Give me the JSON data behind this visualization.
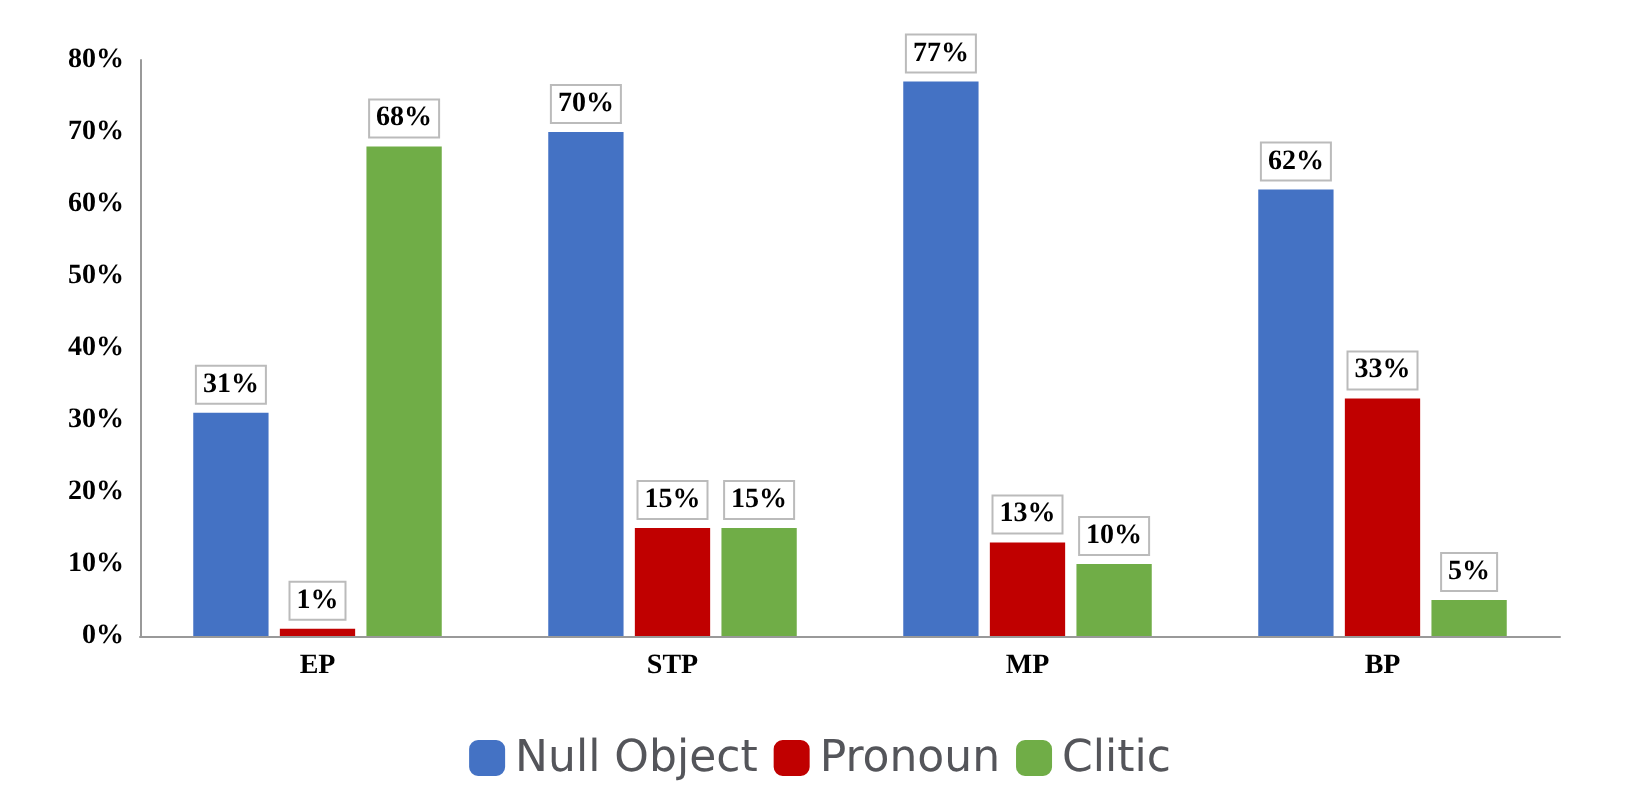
{
  "chart_data": {
    "type": "bar",
    "categories": [
      "EP",
      "STP",
      "MP",
      "BP"
    ],
    "series": [
      {
        "name": "Null Object",
        "color": "#4472c4",
        "values": [
          31,
          70,
          77,
          62
        ],
        "value_labels": [
          "31%",
          "70%",
          "77%",
          "62%"
        ]
      },
      {
        "name": "Pronoun",
        "color": "#c00000",
        "values": [
          1,
          15,
          13,
          33
        ],
        "value_labels": [
          "1%",
          "15%",
          "13%",
          "33%"
        ]
      },
      {
        "name": "Clitic",
        "color": "#70ad47",
        "values": [
          68,
          15,
          10,
          5
        ],
        "value_labels": [
          "68%",
          "15%",
          "10%",
          "5%"
        ]
      }
    ],
    "ylim": [
      0,
      80
    ],
    "yticks": [
      {
        "value": 0,
        "label": "0%"
      },
      {
        "value": 10,
        "label": "10%"
      },
      {
        "value": 20,
        "label": "20%"
      },
      {
        "value": 30,
        "label": "30%"
      },
      {
        "value": 40,
        "label": "40%"
      },
      {
        "value": 50,
        "label": "50%"
      },
      {
        "value": 60,
        "label": "60%"
      },
      {
        "value": 70,
        "label": "70%"
      },
      {
        "value": 80,
        "label": "80%"
      }
    ],
    "grid": false,
    "legend": "bottom"
  }
}
